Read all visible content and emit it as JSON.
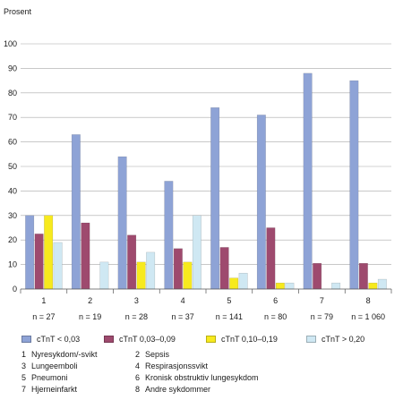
{
  "chart_data": {
    "type": "bar",
    "ylabel": "Prosent",
    "ylim": [
      0,
      100
    ],
    "yticks": [
      0,
      10,
      20,
      30,
      40,
      50,
      60,
      70,
      80,
      90,
      100
    ],
    "grid": true,
    "categories": [
      "1",
      "2",
      "3",
      "4",
      "5",
      "6",
      "7",
      "8"
    ],
    "n_labels": [
      "n = 27",
      "n = 19",
      "n = 28",
      "n = 37",
      "n = 141",
      "n = 80",
      "n = 79",
      "n = 1 060"
    ],
    "series": [
      {
        "name": "cTnT < 0,03",
        "color": "#8ea3d6",
        "values": [
          30,
          63,
          54,
          44,
          74,
          71,
          88,
          85
        ]
      },
      {
        "name": "cTnT 0,03–0,09",
        "color": "#9e4a6e",
        "values": [
          22.5,
          27,
          22,
          16.5,
          17,
          25,
          10.5,
          10.5
        ]
      },
      {
        "name": "cTnT 0,10–0,19",
        "color": "#f7ea1e",
        "values": [
          30,
          0,
          11,
          11,
          4.5,
          2.5,
          0,
          2.5
        ]
      },
      {
        "name": "cTnT > 0,20",
        "color": "#cfe8f3",
        "values": [
          19,
          11,
          15,
          30,
          6.5,
          2.5,
          2.5,
          4
        ]
      }
    ],
    "legend_position": "bottom"
  },
  "diagnoses": [
    {
      "num": "1",
      "label": "Nyresykdom/-svikt"
    },
    {
      "num": "2",
      "label": "Sepsis"
    },
    {
      "num": "3",
      "label": "Lungeemboli"
    },
    {
      "num": "4",
      "label": "Respirasjonssvikt"
    },
    {
      "num": "5",
      "label": "Pneumoni"
    },
    {
      "num": "6",
      "label": "Kronisk obstruktiv lungesykdom"
    },
    {
      "num": "7",
      "label": "Hjerneinfarkt"
    },
    {
      "num": "8",
      "label": "Andre sykdommer"
    }
  ]
}
